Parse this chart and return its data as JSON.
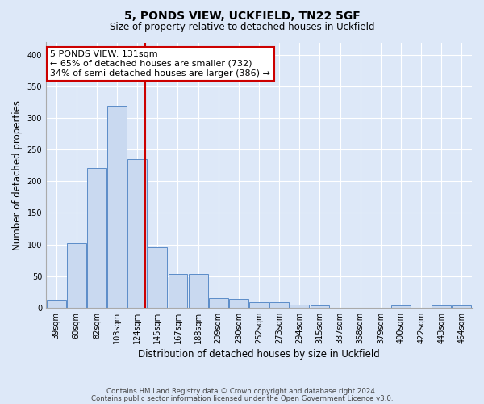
{
  "title1": "5, PONDS VIEW, UCKFIELD, TN22 5GF",
  "title2": "Size of property relative to detached houses in Uckfield",
  "xlabel": "Distribution of detached houses by size in Uckfield",
  "ylabel": "Number of detached properties",
  "bin_labels": [
    "39sqm",
    "60sqm",
    "82sqm",
    "103sqm",
    "124sqm",
    "145sqm",
    "167sqm",
    "188sqm",
    "209sqm",
    "230sqm",
    "252sqm",
    "273sqm",
    "294sqm",
    "315sqm",
    "337sqm",
    "358sqm",
    "379sqm",
    "400sqm",
    "422sqm",
    "443sqm",
    "464sqm"
  ],
  "bar_values": [
    12,
    102,
    221,
    320,
    235,
    95,
    53,
    53,
    15,
    14,
    9,
    8,
    5,
    4,
    0,
    0,
    0,
    3,
    0,
    3,
    3
  ],
  "bar_color": "#c9d9f0",
  "bar_edge_color": "#5b8cc8",
  "vline_x_idx": 4.38,
  "annotation_text": "5 PONDS VIEW: 131sqm\n← 65% of detached houses are smaller (732)\n34% of semi-detached houses are larger (386) →",
  "annotation_box_color": "#ffffff",
  "annotation_box_edge": "#cc0000",
  "vline_color": "#cc0000",
  "footer1": "Contains HM Land Registry data © Crown copyright and database right 2024.",
  "footer2": "Contains public sector information licensed under the Open Government Licence v3.0.",
  "ylim": [
    0,
    420
  ],
  "background_color": "#dde8f8",
  "plot_bg_color": "#dde8f8"
}
